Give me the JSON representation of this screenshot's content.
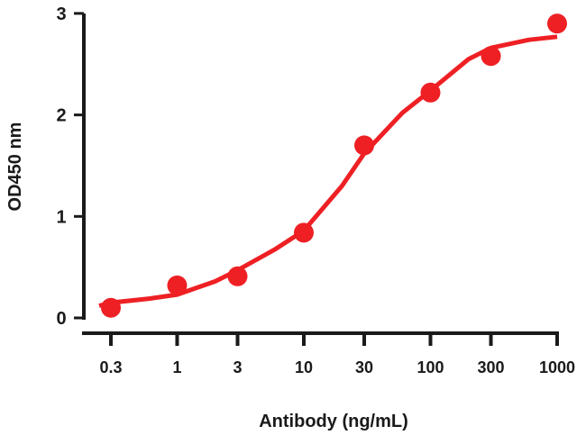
{
  "chart_data": {
    "type": "scatter",
    "title": "",
    "xlabel": "Antibody (ng/mL)",
    "ylabel": "OD450 nm",
    "x_scale": "log",
    "x_ticks": [
      "0.3",
      "1",
      "3",
      "10",
      "30",
      "100",
      "300",
      "1000"
    ],
    "y_ticks": [
      "0",
      "1",
      "2",
      "3"
    ],
    "ylim": [
      0,
      3
    ],
    "grid": false,
    "color": "#ee2024",
    "series": [
      {
        "type": "scatter",
        "x": [
          0.3,
          1,
          3,
          10,
          30,
          100,
          300,
          1000
        ],
        "y": [
          0.1,
          0.32,
          0.41,
          0.84,
          1.7,
          2.22,
          2.58,
          2.9
        ]
      },
      {
        "type": "line",
        "x": [
          0.2,
          0.3,
          0.6,
          1,
          2,
          3,
          6,
          10,
          20,
          30,
          60,
          100,
          200,
          300,
          600,
          1000
        ],
        "y": [
          0.12,
          0.15,
          0.19,
          0.23,
          0.36,
          0.47,
          0.68,
          0.86,
          1.3,
          1.62,
          2.02,
          2.24,
          2.55,
          2.66,
          2.74,
          2.77
        ]
      }
    ]
  }
}
